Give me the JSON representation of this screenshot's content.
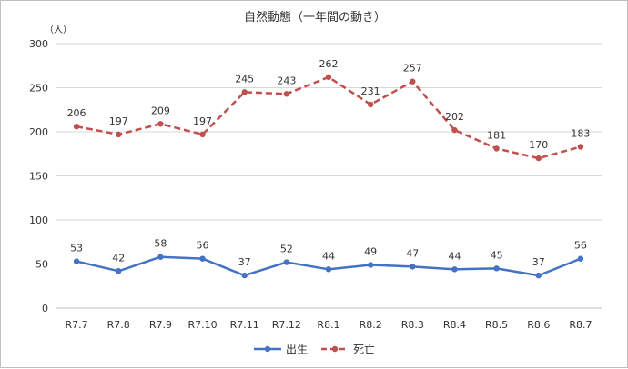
{
  "chart_data": {
    "type": "line",
    "title": "自然動態（一年間の動き）",
    "ylabel": "（人）",
    "xlabel": "",
    "ylim": [
      0,
      300
    ],
    "yticks": [
      0,
      50,
      100,
      150,
      200,
      250,
      300
    ],
    "grid": true,
    "legend_position": "bottom",
    "categories": [
      "R7.7",
      "R7.8",
      "R7.9",
      "R7.10",
      "R7.11",
      "R7.12",
      "R8.1",
      "R8.2",
      "R8.3",
      "R8.4",
      "R8.5",
      "R8.6",
      "R8.7"
    ],
    "series": [
      {
        "name": "出生",
        "values": [
          53,
          42,
          58,
          56,
          37,
          52,
          44,
          49,
          47,
          44,
          45,
          37,
          56
        ],
        "color": "#4472c4",
        "style": "solid"
      },
      {
        "name": "死亡",
        "values": [
          206,
          197,
          209,
          197,
          245,
          243,
          262,
          231,
          257,
          202,
          181,
          170,
          183
        ],
        "color": "#c0504d",
        "style": "dashed"
      }
    ]
  }
}
